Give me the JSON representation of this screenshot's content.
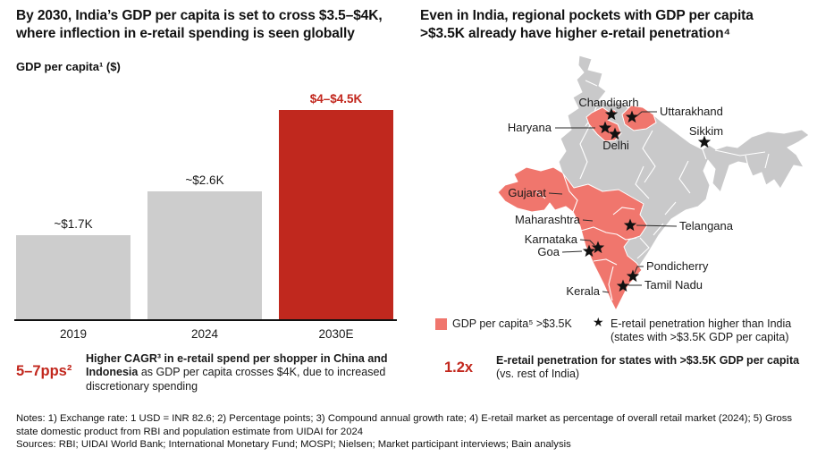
{
  "left_panel": {
    "title_lines": [
      "By 2030, India’s GDP per capita is set to cross $3.5–$4K,",
      "where inflection in e-retail spending is seen globally"
    ],
    "chart_axis_title": "GDP per capita¹ ($)",
    "callout": {
      "stat": "5–7pps²",
      "bold_text": "Higher CAGR³ in e-retail spend per shopper in China and Indonesia",
      "normal_text": " as GDP per capita crosses $4K, due to increased discretionary spending"
    }
  },
  "right_panel": {
    "title_lines": [
      "Even in India, regional pockets with GDP per capita",
      ">$3.5K already have higher e-retail penetration⁴"
    ],
    "map": {
      "labels": [
        {
          "text": "Chandigarh",
          "starred": true
        },
        {
          "text": "Uttarakhand",
          "starred": true
        },
        {
          "text": "Haryana",
          "starred": true
        },
        {
          "text": "Delhi",
          "starred": true
        },
        {
          "text": "Sikkim",
          "starred": true
        },
        {
          "text": "Gujarat",
          "starred": false
        },
        {
          "text": "Maharashtra",
          "starred": false
        },
        {
          "text": "Karnataka",
          "starred": true
        },
        {
          "text": "Goa",
          "starred": true
        },
        {
          "text": "Telangana",
          "starred": true
        },
        {
          "text": "Pondicherry",
          "starred": true
        },
        {
          "text": "Tamil Nadu",
          "starred": true
        },
        {
          "text": "Kerala",
          "starred": false
        }
      ],
      "highlight_color": "#f0766d",
      "base_color": "#c9c9ca"
    },
    "legend": {
      "swatch_label": "GDP per capita⁵ >$3.5K",
      "star_label_line1": "E-retail penetration higher than India",
      "star_label_line2": "(states with >$3.5K GDP per capita)"
    },
    "callout": {
      "stat": "1.2x",
      "bold_text": "E-retail penetration for states with >$3.5K GDP per capita",
      "normal_text": " (vs. rest of India)"
    }
  },
  "icons": {
    "star_glyph": "★"
  },
  "footer": {
    "notes": "Notes: 1) Exchange rate: 1 USD = INR 82.6; 2) Percentage points; 3) Compound annual growth rate; 4) E-retail market as percentage of overall retail market (2024); 5) Gross state domestic product from RBI and population estimate from UIDAI for 2024",
    "sources": "Sources: RBI; UIDAI World Bank; International Monetary Fund; MOSPI; Nielsen; Market participant interviews; Bain analysis"
  },
  "chart_data": {
    "type": "bar",
    "title": "GDP per capita¹ ($)",
    "categories": [
      "2019",
      "2024",
      "2030E"
    ],
    "values": [
      1700,
      2600,
      4250
    ],
    "value_labels": [
      "~$1.7K",
      "~$2.6K",
      "$4–$4.5K"
    ],
    "xlabel": "",
    "ylabel": "GDP per capita ($)",
    "ylim": [
      0,
      4500
    ],
    "highlight_index": 2,
    "bar_color": "#cdcdcd",
    "highlight_color": "#c0281e",
    "grid": false,
    "legend_position": "none"
  }
}
